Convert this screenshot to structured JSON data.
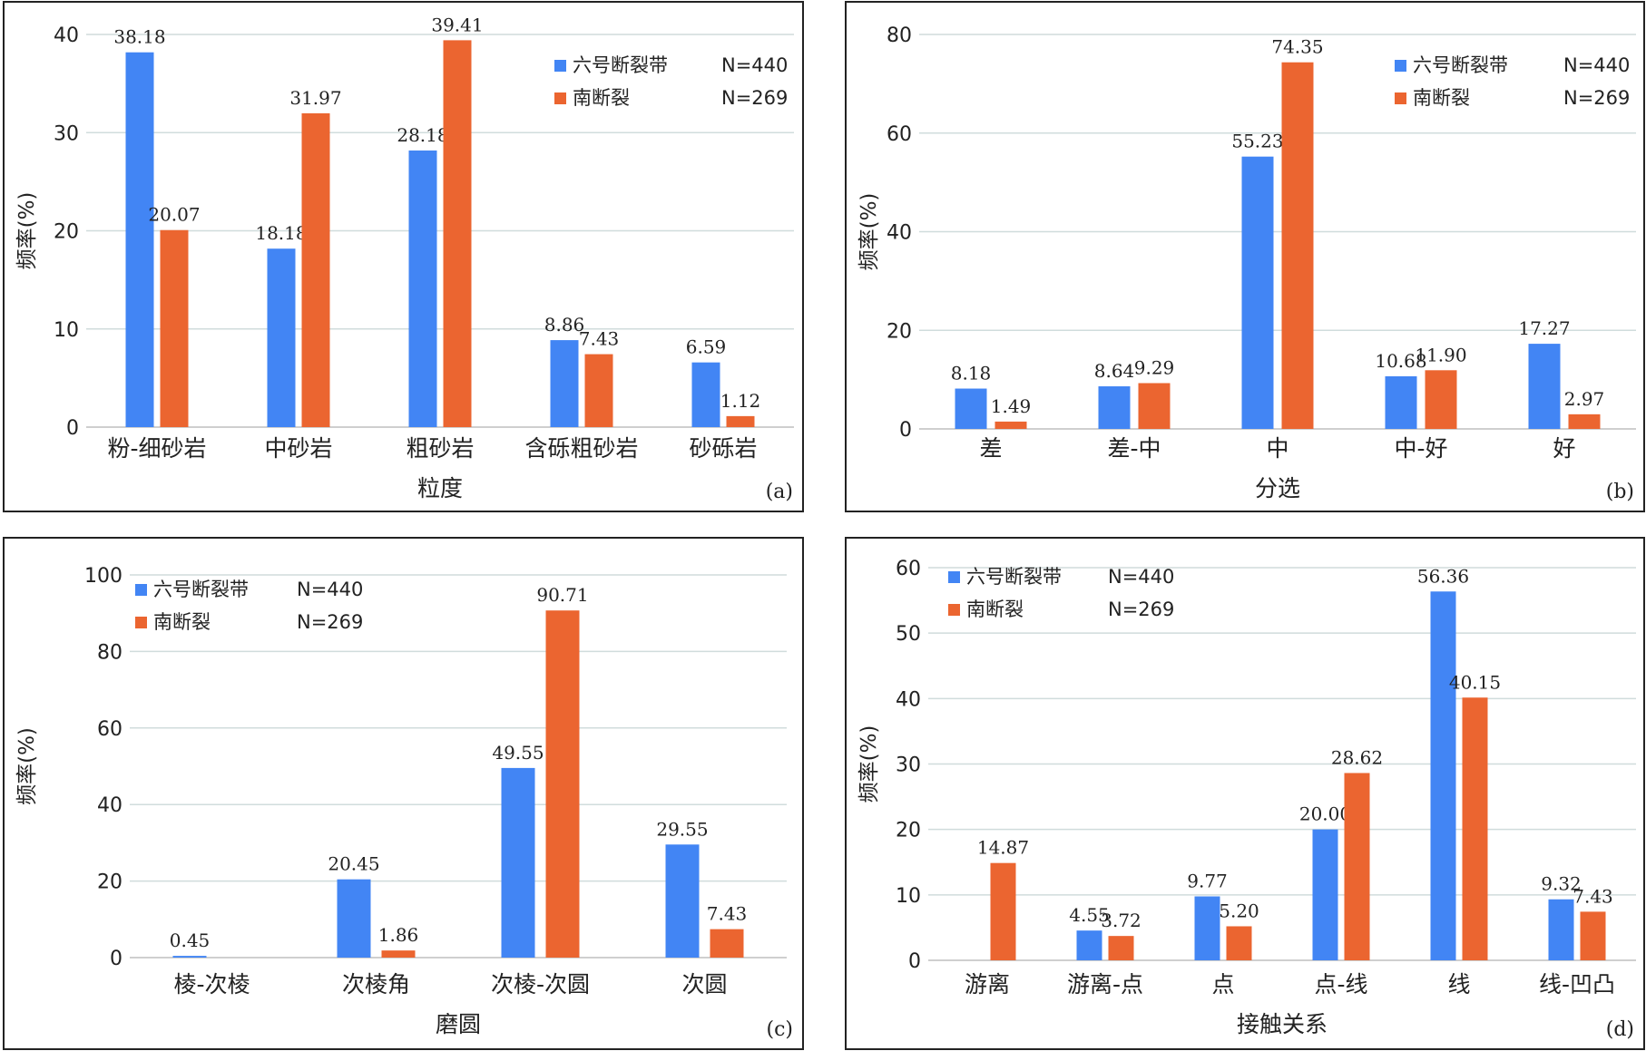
{
  "colors": {
    "series_a": "#4285F4",
    "series_b": "#EB6530",
    "grid": "#D0DCDC",
    "axis": "#BFBFBF"
  },
  "chart_data": [
    {
      "type": "bar",
      "panel_label": "(a)",
      "xlabel": "粒度",
      "ylabel": "频率(%)",
      "ylim": [
        0,
        40
      ],
      "yticks": [
        0,
        10,
        20,
        30,
        40
      ],
      "grid": true,
      "legend_position": "top-right",
      "categories": [
        "粉-细砂岩",
        "中砂岩",
        "粗砂岩",
        "含砾粗砂岩",
        "砂砾岩"
      ],
      "series": [
        {
          "name": "六号断裂带",
          "n_label": "N=440",
          "color": "#4285F4",
          "values": [
            38.18,
            18.18,
            28.18,
            8.86,
            6.59
          ]
        },
        {
          "name": "南断裂",
          "n_label": "N=269",
          "color": "#EB6530",
          "values": [
            20.07,
            31.97,
            39.41,
            7.43,
            1.12
          ]
        }
      ]
    },
    {
      "type": "bar",
      "panel_label": "(b)",
      "xlabel": "分选",
      "ylabel": "频率(%)",
      "ylim": [
        0,
        80
      ],
      "yticks": [
        0,
        20,
        40,
        60,
        80
      ],
      "grid": true,
      "legend_position": "top-right",
      "categories": [
        "差",
        "差-中",
        "中",
        "中-好",
        "好"
      ],
      "series": [
        {
          "name": "六号断裂带",
          "n_label": "N=440",
          "color": "#4285F4",
          "values": [
            8.18,
            8.64,
            55.23,
            10.68,
            17.27
          ]
        },
        {
          "name": "南断裂",
          "n_label": "N=269",
          "color": "#EB6530",
          "values": [
            1.49,
            9.29,
            74.35,
            11.9,
            2.97
          ]
        }
      ]
    },
    {
      "type": "bar",
      "panel_label": "(c)",
      "xlabel": "磨圆",
      "ylabel": "频率(%)",
      "ylim": [
        0,
        100
      ],
      "yticks": [
        0,
        20,
        40,
        60,
        80,
        100
      ],
      "grid": true,
      "legend_position": "top-left",
      "categories": [
        "棱-次棱",
        "次棱角",
        "次棱-次圆",
        "次圆"
      ],
      "series": [
        {
          "name": "六号断裂带",
          "n_label": "N=440",
          "color": "#4285F4",
          "values": [
            0.45,
            20.45,
            49.55,
            29.55
          ]
        },
        {
          "name": "南断裂",
          "n_label": "N=269",
          "color": "#EB6530",
          "values": [
            null,
            1.86,
            90.71,
            7.43
          ]
        }
      ]
    },
    {
      "type": "bar",
      "panel_label": "(d)",
      "xlabel": "接触关系",
      "ylabel": "频率(%)",
      "ylim": [
        0,
        60
      ],
      "yticks": [
        0,
        10,
        20,
        30,
        40,
        50,
        60
      ],
      "grid": true,
      "legend_position": "top-left",
      "categories": [
        "游离",
        "游离-点",
        "点",
        "点-线",
        "线",
        "线-凹凸"
      ],
      "series": [
        {
          "name": "六号断裂带",
          "n_label": "N=440",
          "color": "#4285F4",
          "values": [
            null,
            4.55,
            9.77,
            20.0,
            56.36,
            9.32
          ]
        },
        {
          "name": "南断裂",
          "n_label": "N=269",
          "color": "#EB6530",
          "values": [
            14.87,
            3.72,
            5.2,
            28.62,
            40.15,
            7.43
          ]
        }
      ]
    }
  ]
}
